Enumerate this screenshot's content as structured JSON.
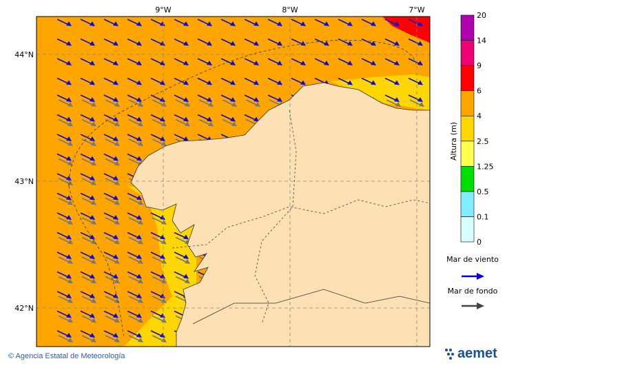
{
  "map": {
    "lon_labels": [
      "9°W",
      "8°W",
      "7°W"
    ],
    "lat_labels": [
      "44°N",
      "43°N",
      "42°N"
    ]
  },
  "legend": {
    "title": "Altura (m)",
    "levels": [
      "0",
      "0.1",
      "0.5",
      "1.25",
      "2.5",
      "4",
      "6",
      "9",
      "14",
      "20"
    ],
    "wind_sea": "Mar de viento",
    "swell": "Mar de fondo"
  },
  "footer": {
    "credit": "© Agencia Estatal de Meteorología",
    "logo": "aemet"
  }
}
